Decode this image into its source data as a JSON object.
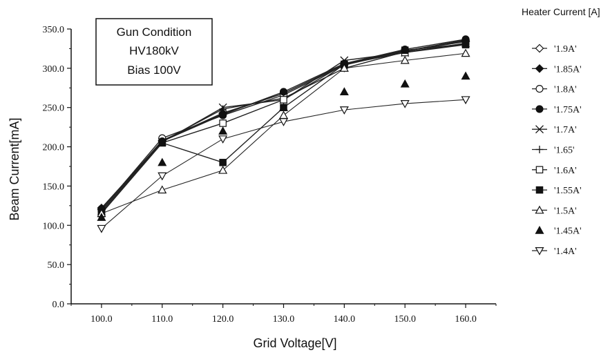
{
  "chart_data": {
    "type": "line",
    "title": "",
    "xlabel": "Grid Voltage[V]",
    "ylabel": "Beam Current[mA]",
    "xlim": [
      95,
      165
    ],
    "ylim": [
      0,
      350
    ],
    "x_ticks": [
      "100.0",
      "110.0",
      "120.0",
      "130.0",
      "140.0",
      "150.0",
      "160.0"
    ],
    "y_ticks": [
      "0.0",
      "50.0",
      "100.0",
      "150.0",
      "200.0",
      "250.0",
      "300.0",
      "350.0"
    ],
    "grid": false,
    "legend_title": "Heater Current [A]",
    "legend_position": "right",
    "annotation": [
      "Gun Condition",
      "HV180kV",
      "Bias 100V"
    ],
    "x": [
      100,
      110,
      120,
      130,
      140,
      150,
      160
    ],
    "series": [
      {
        "name": "'1.9A'",
        "marker": "diamond-open",
        "line": true,
        "values": [
          120,
          208,
          243,
          268,
          305,
          322,
          334
        ]
      },
      {
        "name": "'1.85A'",
        "marker": "diamond-filled",
        "line": true,
        "values": [
          122,
          207,
          242,
          268,
          305,
          322,
          335
        ]
      },
      {
        "name": "'1.8A'",
        "marker": "circle-open",
        "line": true,
        "values": [
          120,
          211,
          240,
          266,
          304,
          322,
          336
        ]
      },
      {
        "name": "'1.75A'",
        "marker": "circle-filled",
        "line": true,
        "values": [
          121,
          207,
          241,
          270,
          306,
          324,
          337
        ]
      },
      {
        "name": "'1.7A'",
        "marker": "x",
        "line": true,
        "values": [
          118,
          206,
          250,
          260,
          310,
          320,
          332
        ]
      },
      {
        "name": "'1.65'",
        "marker": "plus",
        "line": true,
        "values": [
          118,
          207,
          248,
          262,
          300,
          321,
          331
        ]
      },
      {
        "name": "'1.6A'",
        "marker": "square-open",
        "line": true,
        "values": [
          116,
          205,
          230,
          260,
          305,
          320,
          330
        ]
      },
      {
        "name": "'1.55A'",
        "marker": "square-filled",
        "line": true,
        "values": [
          115,
          205,
          180,
          250,
          305,
          323,
          331
        ]
      },
      {
        "name": "'1.5A'",
        "marker": "triangle-up-open",
        "line": true,
        "values": [
          115,
          145,
          170,
          240,
          300,
          310,
          319
        ]
      },
      {
        "name": "'1.45A'",
        "marker": "triangle-up-filled",
        "line": false,
        "values": [
          110,
          180,
          220,
          250,
          270,
          280,
          290
        ]
      },
      {
        "name": "'1.4A'",
        "marker": "triangle-down-open",
        "line": true,
        "values": [
          96,
          163,
          210,
          232,
          247,
          255,
          260
        ]
      }
    ]
  }
}
